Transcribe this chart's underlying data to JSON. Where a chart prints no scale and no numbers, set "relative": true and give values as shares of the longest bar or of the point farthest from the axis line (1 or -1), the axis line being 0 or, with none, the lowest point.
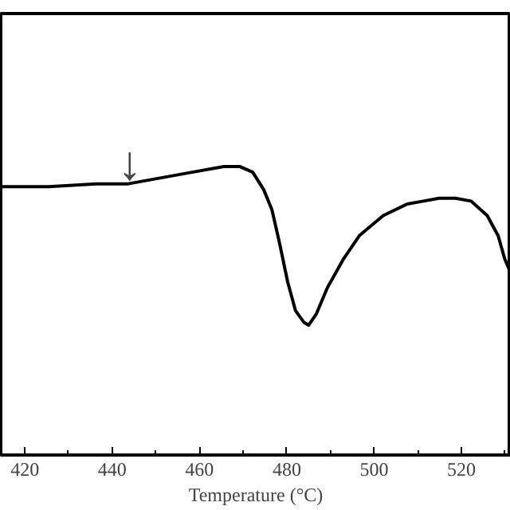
{
  "chart_data": {
    "type": "line",
    "relative": true,
    "xlabel": "Temperature (°C)",
    "xlim": [
      414.5,
      531.3
    ],
    "xticks": [
      420,
      440,
      460,
      480,
      500,
      520
    ],
    "grid": false,
    "marker": "none",
    "line_style": "solid",
    "series": [
      {
        "color": "#000000",
        "x": [
          414.5,
          425.5,
          436.4,
          443.7,
          451,
          458.3,
          465.6,
          469.2,
          472.2,
          474.7,
          476.6,
          478.4,
          480.2,
          482,
          483.9,
          485,
          486.8,
          489.3,
          493,
          496.6,
          502.1,
          507.6,
          511.3,
          514.9,
          518.6,
          522.2,
          525.9,
          528.4,
          529.9,
          531.3
        ],
        "values": [
          0.93,
          0.93,
          0.94,
          0.94,
          0.96,
          0.98,
          1.0,
          1.0,
          0.98,
          0.92,
          0.85,
          0.73,
          0.6,
          0.5,
          0.46,
          0.45,
          0.49,
          0.58,
          0.68,
          0.76,
          0.83,
          0.87,
          0.88,
          0.89,
          0.89,
          0.88,
          0.83,
          0.76,
          0.68,
          0.63
        ]
      }
    ],
    "annotations": [
      {
        "text": "↓",
        "x": 444,
        "y": 0.94
      }
    ]
  }
}
